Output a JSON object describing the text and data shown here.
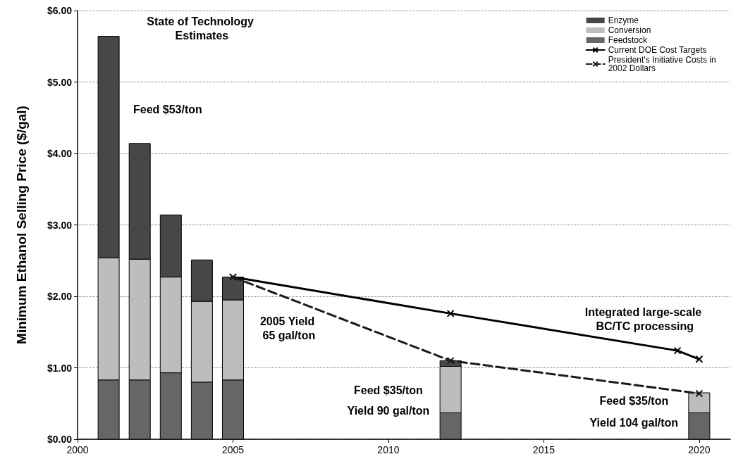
{
  "chart_data": {
    "type": "bar",
    "stacked": true,
    "ylabel": "Minimum Ethanol Selling Price ($/gal)",
    "x": [
      2001,
      2002,
      2003,
      2004,
      2005,
      2012,
      2020
    ],
    "series": [
      {
        "name": "Feedstock",
        "color": "#666666",
        "values": [
          0.83,
          0.83,
          0.93,
          0.8,
          0.83,
          0.37,
          0.37
        ]
      },
      {
        "name": "Conversion",
        "color": "#bdbdbd",
        "values": [
          1.71,
          1.69,
          1.34,
          1.13,
          1.12,
          0.65,
          0.28
        ]
      },
      {
        "name": "Enzyme",
        "color": "#474747",
        "values": [
          3.1,
          1.62,
          0.87,
          0.58,
          0.32,
          0.08,
          null
        ]
      },
      {
        "name": "Current DOE Cost Targets",
        "type": "line",
        "color": "#000000",
        "line_style": "solid",
        "x": [
          2005,
          2012,
          2019.3,
          2020
        ],
        "values": [
          2.27,
          1.76,
          1.24,
          1.12
        ]
      },
      {
        "name": "President's Initiative Costs in 2002 Dollars",
        "type": "line",
        "color": "#1a1a1a",
        "line_style": "dashed",
        "x": [
          2005,
          2012,
          2020
        ],
        "values": [
          2.27,
          1.1,
          0.64
        ]
      }
    ],
    "marker": "cross",
    "xlim": [
      2000,
      2021
    ],
    "xticks": [
      2000,
      2005,
      2010,
      2015,
      2020
    ],
    "ylim": [
      0,
      6
    ],
    "yticks": [
      {
        "value": 0,
        "label": "$0.00"
      },
      {
        "value": 1,
        "label": "$1.00"
      },
      {
        "value": 2,
        "label": "$2.00"
      },
      {
        "value": 3,
        "label": "$3.00"
      },
      {
        "value": 4,
        "label": "$4.00"
      },
      {
        "value": 5,
        "label": "$5.00"
      },
      {
        "value": 6,
        "label": "$6.00"
      }
    ],
    "grid": "y",
    "legend": "top right",
    "annotations": [
      "State of Technology Estimates",
      "Feed $53/ton",
      "2005 Yield 65 gal/ton",
      "Feed $35/ton",
      "Yield 90 gal/ton",
      "Feed $35/ton",
      "Yield 104 gal/ton",
      "Integrated large-scale BC/TC processing"
    ]
  }
}
